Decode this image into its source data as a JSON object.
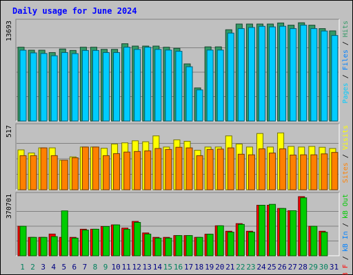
{
  "chart_data": {
    "type": "bar",
    "title": "Daily usage for June 2024",
    "categories": [
      "1",
      "2",
      "3",
      "4",
      "5",
      "6",
      "7",
      "8",
      "9",
      "10",
      "11",
      "12",
      "13",
      "14",
      "15",
      "16",
      "17",
      "18",
      "19",
      "20",
      "21",
      "22",
      "23",
      "24",
      "25",
      "26",
      "27",
      "28",
      "29",
      "30",
      "31"
    ],
    "weekend_days": [
      "1",
      "2",
      "8",
      "9",
      "15",
      "16",
      "22",
      "23",
      "29",
      "30"
    ],
    "panels": [
      {
        "name": "hits-panel",
        "max_label": "13693",
        "ymax": 13693,
        "axis_label": [
          "Pages",
          "Files",
          "Hits"
        ],
        "series": [
          {
            "name": "Hits",
            "color": "#339966",
            "values": [
              10350,
              9930,
              9930,
              9600,
              10100,
              9900,
              10350,
              10350,
              10050,
              10050,
              10840,
              10510,
              10510,
              10510,
              10350,
              10200,
              8010,
              4640,
              10400,
              10400,
              12800,
              13600,
              13600,
              13600,
              13600,
              13750,
              13440,
              13780,
              13440,
              12960,
              12640
            ]
          },
          {
            "name": "Files",
            "color": "#00ccff",
            "values": [
              9930,
              9550,
              9470,
              9150,
              9600,
              9450,
              9900,
              9900,
              9600,
              9600,
              10350,
              10040,
              10350,
              10040,
              9950,
              9780,
              7610,
              4360,
              9950,
              9950,
              12330,
              12960,
              13120,
              13280,
              13200,
              13290,
              12960,
              13440,
              12960,
              12620,
              11990
            ]
          },
          {
            "name": "Pages",
            "color": "#00ccff",
            "values": []
          }
        ],
        "label_colors": {
          "Pages": "#00ccff",
          "Files": "#0080ff",
          "Hits": "#339966"
        }
      },
      {
        "name": "sites-panel",
        "max_label": "517",
        "ymax": 517,
        "axis_label": [
          "Sites",
          "Visits"
        ],
        "series": [
          {
            "name": "Visits",
            "color": "#ffff00",
            "values": [
              333,
              307,
              350,
              350,
              247,
              275,
              357,
              357,
              347,
              382,
              392,
              409,
              401,
              450,
              357,
              417,
              405,
              330,
              357,
              357,
              450,
              382,
              357,
              470,
              357,
              475,
              362,
              357,
              362,
              355,
              345
            ]
          },
          {
            "name": "Sites",
            "color": "#ff8000",
            "values": [
              285,
              285,
              350,
              285,
              247,
              267,
              357,
              357,
              285,
              302,
              315,
              320,
              325,
              345,
              337,
              355,
              350,
              285,
              337,
              340,
              350,
              297,
              292,
              342,
              307,
              342,
              290,
              292,
              292,
              300,
              312
            ]
          }
        ],
        "label_colors": {
          "Sites": "#ff8000",
          "Visits": "#ffff00"
        }
      },
      {
        "name": "kbytes-panel",
        "max_label": "370701",
        "ymax": 370701,
        "axis_label": [
          "kB F",
          "kB In",
          "kB Out"
        ],
        "series": [
          {
            "name": "kB F",
            "color": "#ff0000",
            "values": [
              184900,
              115400,
              115400,
              136100,
              115400,
              115400,
              166400,
              166400,
              183500,
              193600,
              173400,
              215200,
              143100,
              115400,
              115400,
              126600,
              126600,
              115400,
              135200,
              188000,
              153800,
              201500,
              153800,
              316700,
              316700,
              296600,
              282400,
              370700,
              184900,
              153800,
              null
            ]
          },
          {
            "name": "kB Out",
            "color": "#00cc00",
            "values": [
              184900,
              115400,
              115400,
              120200,
              281400,
              110600,
              160800,
              166400,
              183500,
              193600,
              165500,
              209100,
              135900,
              110600,
              110600,
              126600,
              126600,
              115400,
              135200,
              188000,
              148100,
              196700,
              148100,
              316700,
              322400,
              296600,
              282400,
              363400,
              184900,
              147300,
              null
            ]
          }
        ],
        "label_colors": {
          "kB F": "#ff0000",
          "kB In": "#0080ff",
          "kB Out": "#00cc00"
        }
      }
    ],
    "grid": true,
    "colors": {
      "title": "#0000ff",
      "weekday_label": "#000080",
      "weekend_label": "#00805c",
      "panel_bg": "#c0c0c0"
    }
  }
}
